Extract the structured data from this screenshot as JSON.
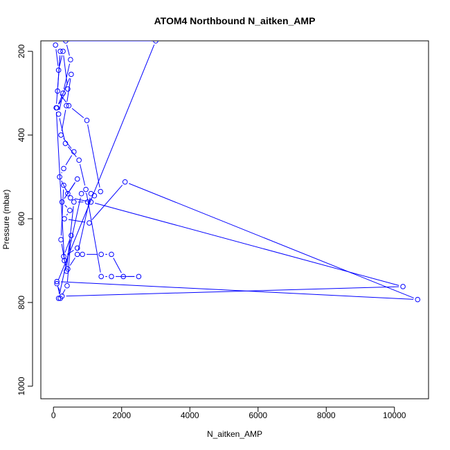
{
  "chart_data": {
    "type": "line",
    "title": "ATOM4 Northbound N_aitken_AMP",
    "xlabel": "N_aitken_AMP",
    "ylabel": "Pressure (mbar)",
    "xlim": [
      -370,
      11000
    ],
    "ylim": [
      1030,
      175
    ],
    "y_axis_inverted": true,
    "x_ticks": [
      0,
      2000,
      4000,
      6000,
      8000,
      10000
    ],
    "y_ticks": [
      200,
      400,
      600,
      800,
      1000
    ],
    "x_tick_labels": [
      "0",
      "2000",
      "4000",
      "6000",
      "8000",
      "10000"
    ],
    "y_tick_labels": [
      "200",
      "400",
      "600",
      "800",
      "1000"
    ],
    "grid": false,
    "legend": "none",
    "marker": "open-circle",
    "series": [
      {
        "color": "#0000ff",
        "points": [
          [
            60,
            185
          ],
          [
            150,
            245
          ],
          [
            280,
            200
          ],
          [
            420,
            290
          ],
          [
            100,
            335
          ],
          [
            520,
            255
          ],
          [
            380,
            330
          ],
          [
            220,
            400
          ],
          [
            600,
            440
          ],
          [
            300,
            480
          ],
          [
            180,
            500
          ],
          [
            420,
            540
          ],
          [
            700,
            505
          ],
          [
            250,
            560
          ],
          [
            480,
            580
          ],
          [
            320,
            600
          ],
          [
            1050,
            610
          ],
          [
            2100,
            512
          ],
          [
            10680,
            793
          ],
          [
            100,
            750
          ],
          [
            200,
            790
          ],
          [
            400,
            760
          ],
          [
            520,
            640
          ],
          [
            300,
            690
          ],
          [
            700,
            670
          ],
          [
            850,
            685
          ],
          [
            1400,
            685
          ],
          [
            1700,
            685
          ],
          [
            2050,
            738
          ],
          [
            2500,
            738
          ],
          [
            1700,
            738
          ],
          [
            1400,
            738
          ],
          [
            950,
            530
          ],
          [
            750,
            460
          ],
          [
            350,
            420
          ],
          [
            150,
            350
          ],
          [
            280,
            300
          ],
          [
            500,
            220
          ],
          [
            360,
            175
          ],
          [
            3000,
            175
          ],
          [
            100,
            755
          ],
          [
            250,
            785
          ],
          [
            10250,
            762
          ],
          [
            1100,
            560
          ],
          [
            500,
            550
          ],
          [
            300,
            520
          ],
          [
            220,
            650
          ],
          [
            380,
            725
          ],
          [
            600,
            560
          ],
          [
            1000,
            560
          ],
          [
            1200,
            545
          ],
          [
            1380,
            535
          ],
          [
            980,
            365
          ],
          [
            450,
            330
          ],
          [
            120,
            295
          ],
          [
            200,
            200
          ],
          [
            80,
            335
          ],
          [
            320,
            700
          ],
          [
            420,
            720
          ],
          [
            700,
            685
          ],
          [
            1100,
            540
          ],
          [
            820,
            540
          ],
          [
            150,
            790
          ]
        ]
      }
    ]
  }
}
